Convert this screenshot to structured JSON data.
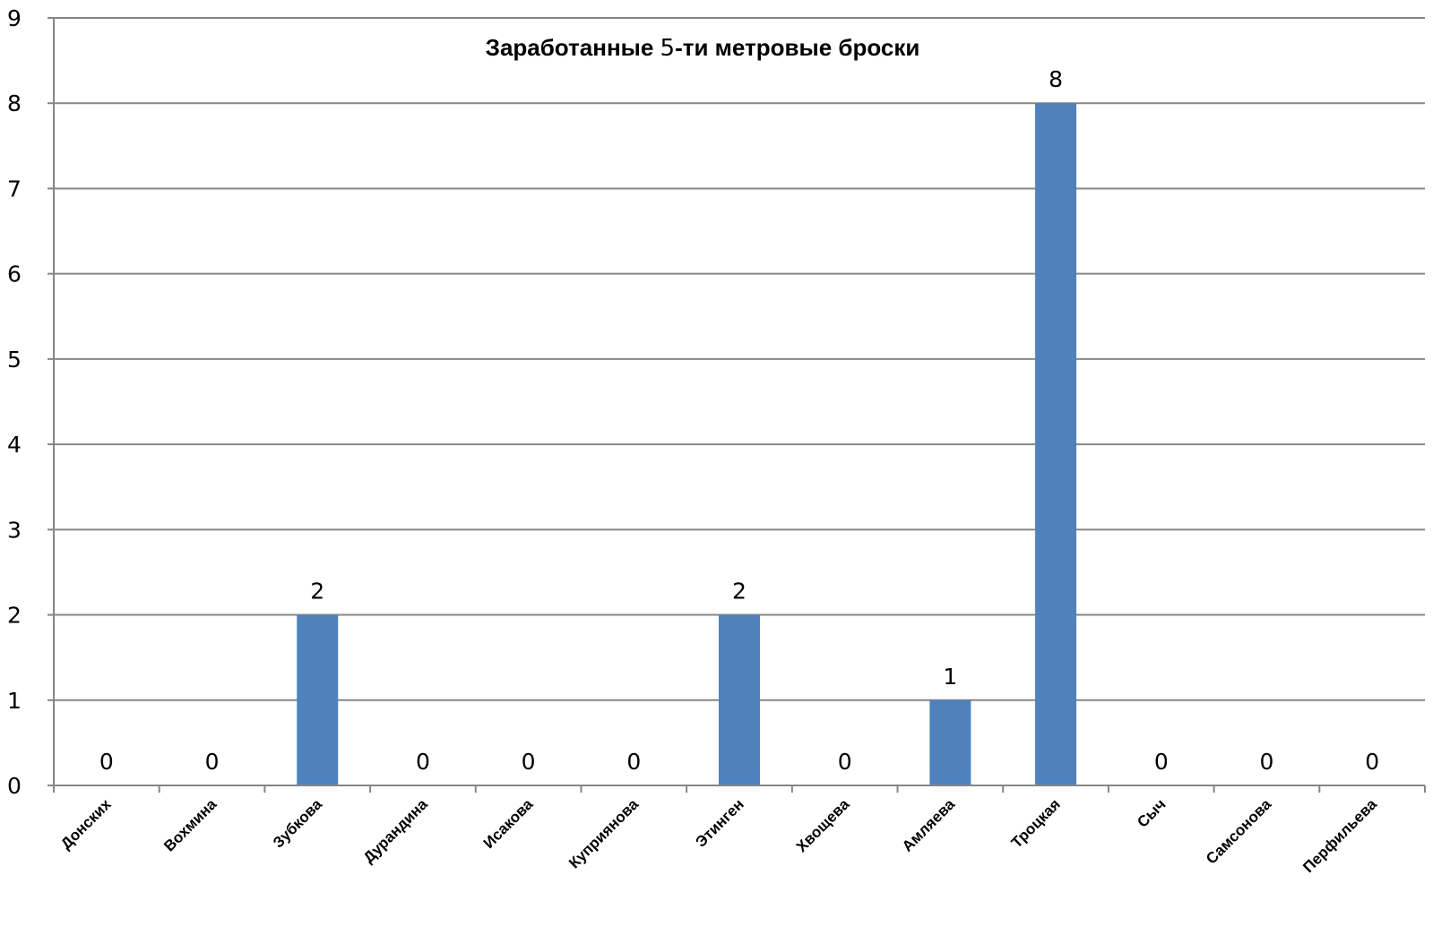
{
  "chart_data": {
    "type": "bar",
    "title_parts": [
      "Заработанные ",
      "5",
      "-ти метровые броски"
    ],
    "xlabel": "",
    "ylabel": "",
    "ylim": [
      0,
      9
    ],
    "yticks": [
      "0",
      "1",
      "2",
      "3",
      "4",
      "5",
      "6",
      "7",
      "8",
      "9"
    ],
    "grid": true,
    "legend": "none",
    "categories": [
      "Донских",
      "Вохмина",
      "Зубкова",
      "Дурандина",
      "Исакова",
      "Куприянова",
      "Этинген",
      "Хвощева",
      "Амляева",
      "Троцкая",
      "Сыч",
      "Самсонова",
      "Перфильева"
    ],
    "values": [
      0,
      0,
      2,
      0,
      0,
      0,
      2,
      0,
      1,
      8,
      0,
      0,
      0
    ],
    "bar_color": "#4f81bd",
    "grid_color": "#868686"
  }
}
